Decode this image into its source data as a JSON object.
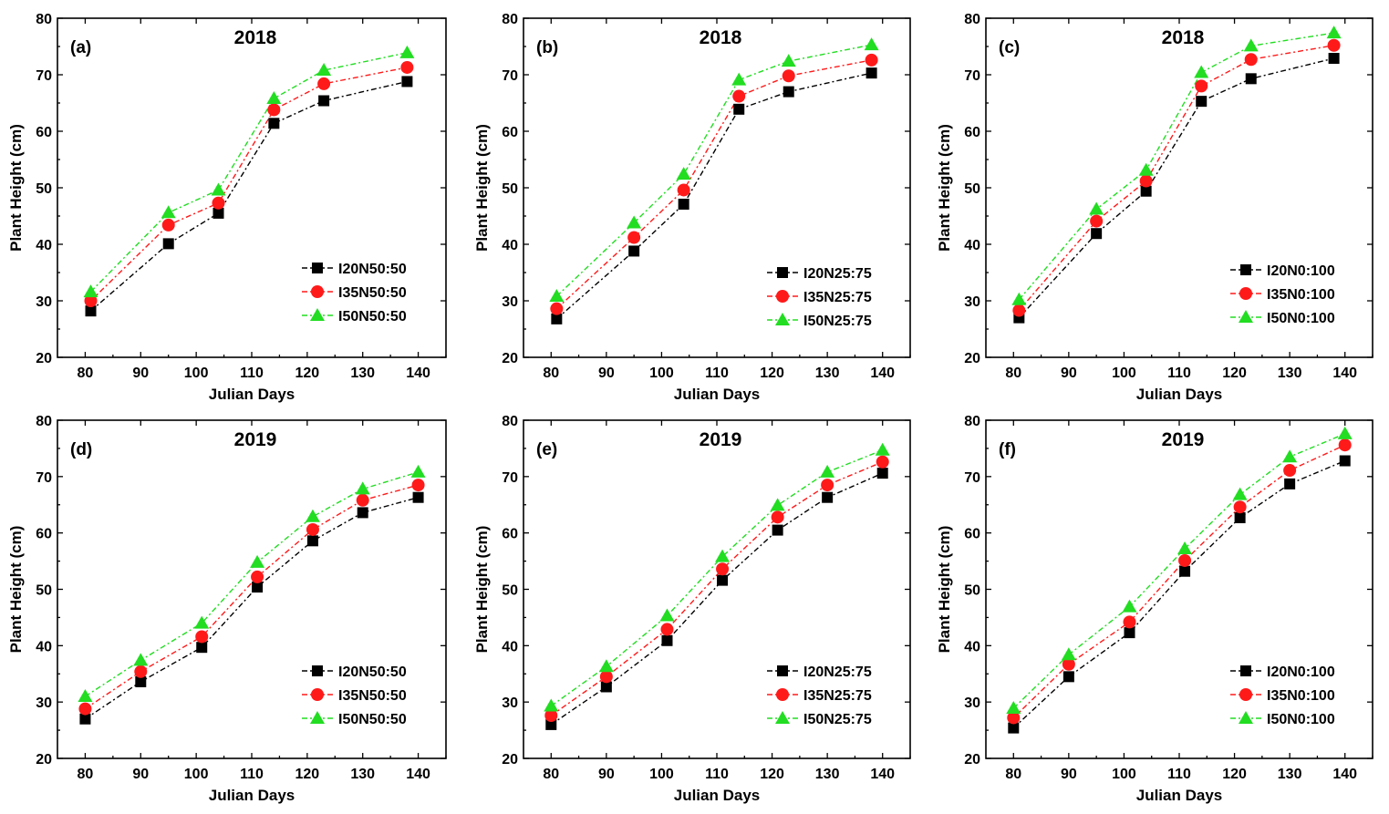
{
  "colors": {
    "I20": "#000000",
    "I35": "#ff1a1a",
    "I50": "#22dd22"
  },
  "chart_data": [
    {
      "type": "line",
      "letter": "(a)",
      "title": "2018",
      "xlabel": "Julian Days",
      "ylabel": "Plant Height (cm)",
      "xlim": [
        75,
        145
      ],
      "ylim": [
        20,
        80
      ],
      "xticks": [
        "80",
        "90",
        "100",
        "110",
        "120",
        "130",
        "140"
      ],
      "yticks": [
        "20",
        "30",
        "40",
        "50",
        "60",
        "70",
        "80"
      ],
      "x": [
        81,
        95,
        104,
        114,
        123,
        138
      ],
      "series": [
        {
          "name": "I20N50:50",
          "values": [
            28.2,
            40.1,
            45.5,
            61.4,
            65.4,
            68.8
          ]
        },
        {
          "name": "I35N50:50",
          "values": [
            30.0,
            43.4,
            47.3,
            63.8,
            68.4,
            71.3
          ]
        },
        {
          "name": "I50N50:50",
          "values": [
            31.6,
            45.6,
            49.6,
            65.8,
            70.8,
            73.9
          ]
        }
      ]
    },
    {
      "type": "line",
      "letter": "(b)",
      "title": "2018",
      "xlabel": "Julian Days",
      "ylabel": "Plant Height (cm)",
      "xlim": [
        75,
        145
      ],
      "ylim": [
        20,
        80
      ],
      "xticks": [
        "80",
        "90",
        "100",
        "110",
        "120",
        "130",
        "140"
      ],
      "yticks": [
        "20",
        "30",
        "40",
        "50",
        "60",
        "70",
        "80"
      ],
      "x": [
        81,
        95,
        104,
        114,
        123,
        138
      ],
      "series": [
        {
          "name": "I20N25:75",
          "values": [
            26.8,
            38.8,
            47.1,
            63.9,
            67.0,
            70.3
          ]
        },
        {
          "name": "I35N25:75",
          "values": [
            28.6,
            41.2,
            49.6,
            66.2,
            69.8,
            72.6
          ]
        },
        {
          "name": "I50N25:75",
          "values": [
            30.8,
            43.8,
            52.4,
            69.1,
            72.4,
            75.3
          ]
        }
      ]
    },
    {
      "type": "line",
      "letter": "(c)",
      "title": "2018",
      "xlabel": "Julian Days",
      "ylabel": "Plant Height (cm)",
      "xlim": [
        75,
        145
      ],
      "ylim": [
        20,
        80
      ],
      "xticks": [
        "80",
        "90",
        "100",
        "110",
        "120",
        "130",
        "140"
      ],
      "yticks": [
        "20",
        "30",
        "40",
        "50",
        "60",
        "70",
        "80"
      ],
      "x": [
        81,
        95,
        104,
        114,
        123,
        138
      ],
      "series": [
        {
          "name": "I20N0:100",
          "values": [
            27.0,
            41.9,
            49.4,
            65.3,
            69.3,
            72.9
          ]
        },
        {
          "name": "I35N0:100",
          "values": [
            28.3,
            44.1,
            51.2,
            68.0,
            72.7,
            75.2
          ]
        },
        {
          "name": "I50N0:100",
          "values": [
            30.2,
            46.2,
            53.1,
            70.4,
            75.1,
            77.4
          ]
        }
      ]
    },
    {
      "type": "line",
      "letter": "(d)",
      "title": "2019",
      "xlabel": "Julian Days",
      "ylabel": "Plant Height (cm)",
      "xlim": [
        75,
        145
      ],
      "ylim": [
        20,
        80
      ],
      "xticks": [
        "80",
        "90",
        "100",
        "110",
        "120",
        "130",
        "140"
      ],
      "yticks": [
        "20",
        "30",
        "40",
        "50",
        "60",
        "70",
        "80"
      ],
      "x": [
        80,
        90,
        101,
        111,
        121,
        130,
        140
      ],
      "series": [
        {
          "name": "I20N50:50",
          "values": [
            27.0,
            33.6,
            39.7,
            50.4,
            58.6,
            63.6,
            66.3
          ]
        },
        {
          "name": "I35N50:50",
          "values": [
            28.8,
            35.4,
            41.6,
            52.2,
            60.6,
            65.8,
            68.5
          ]
        },
        {
          "name": "I50N50:50",
          "values": [
            31.0,
            37.4,
            44.0,
            54.8,
            62.9,
            67.8,
            70.8
          ]
        }
      ]
    },
    {
      "type": "line",
      "letter": "(e)",
      "title": "2019",
      "xlabel": "Julian Days",
      "ylabel": "Plant Height (cm)",
      "xlim": [
        75,
        145
      ],
      "ylim": [
        20,
        80
      ],
      "xticks": [
        "80",
        "90",
        "100",
        "110",
        "120",
        "130",
        "140"
      ],
      "yticks": [
        "20",
        "30",
        "40",
        "50",
        "60",
        "70",
        "80"
      ],
      "x": [
        80,
        90,
        101,
        111,
        121,
        130,
        140
      ],
      "series": [
        {
          "name": "I20N25:75",
          "values": [
            26.0,
            32.7,
            40.9,
            51.6,
            60.5,
            66.3,
            70.6
          ]
        },
        {
          "name": "I35N25:75",
          "values": [
            27.6,
            34.5,
            42.9,
            53.6,
            62.8,
            68.5,
            72.6
          ]
        },
        {
          "name": "I50N25:75",
          "values": [
            29.3,
            36.3,
            45.3,
            55.8,
            64.9,
            70.8,
            74.7
          ]
        }
      ]
    },
    {
      "type": "line",
      "letter": "(f)",
      "title": "2019",
      "xlabel": "Julian Days",
      "ylabel": "Plant Height (cm)",
      "xlim": [
        75,
        145
      ],
      "ylim": [
        20,
        80
      ],
      "xticks": [
        "80",
        "90",
        "100",
        "110",
        "120",
        "130",
        "140"
      ],
      "yticks": [
        "20",
        "30",
        "40",
        "50",
        "60",
        "70",
        "80"
      ],
      "x": [
        80,
        90,
        101,
        111,
        121,
        130,
        140
      ],
      "series": [
        {
          "name": "I20N0:100",
          "values": [
            25.4,
            34.5,
            42.3,
            53.2,
            62.7,
            68.7,
            72.8
          ]
        },
        {
          "name": "I35N0:100",
          "values": [
            27.2,
            36.7,
            44.2,
            55.1,
            64.6,
            71.1,
            75.6
          ]
        },
        {
          "name": "I50N0:100",
          "values": [
            28.9,
            38.4,
            46.9,
            57.2,
            66.8,
            73.5,
            77.6
          ]
        }
      ]
    }
  ]
}
